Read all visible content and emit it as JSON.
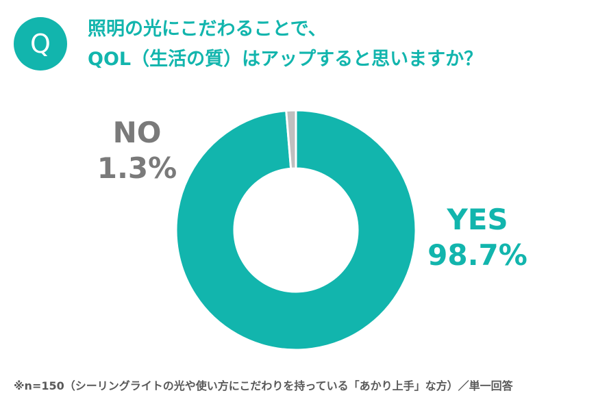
{
  "badge": {
    "label": "Q"
  },
  "title": {
    "line1": "照明の光にこだわることで、",
    "line2": "QOL（生活の質）はアップすると思いますか？"
  },
  "chart_data": {
    "type": "pie",
    "style": "donut",
    "slices": [
      {
        "name": "YES",
        "value": 98.7,
        "label": "98.7%",
        "color": "#12b5ad"
      },
      {
        "name": "NO",
        "value": 1.3,
        "label": "1.3%",
        "color": "#bfbfbf"
      }
    ]
  },
  "footnote": "※n=150（シーリングライトの光や使い方にこだわりを持っている「あかり上手」な方）／単一回答"
}
